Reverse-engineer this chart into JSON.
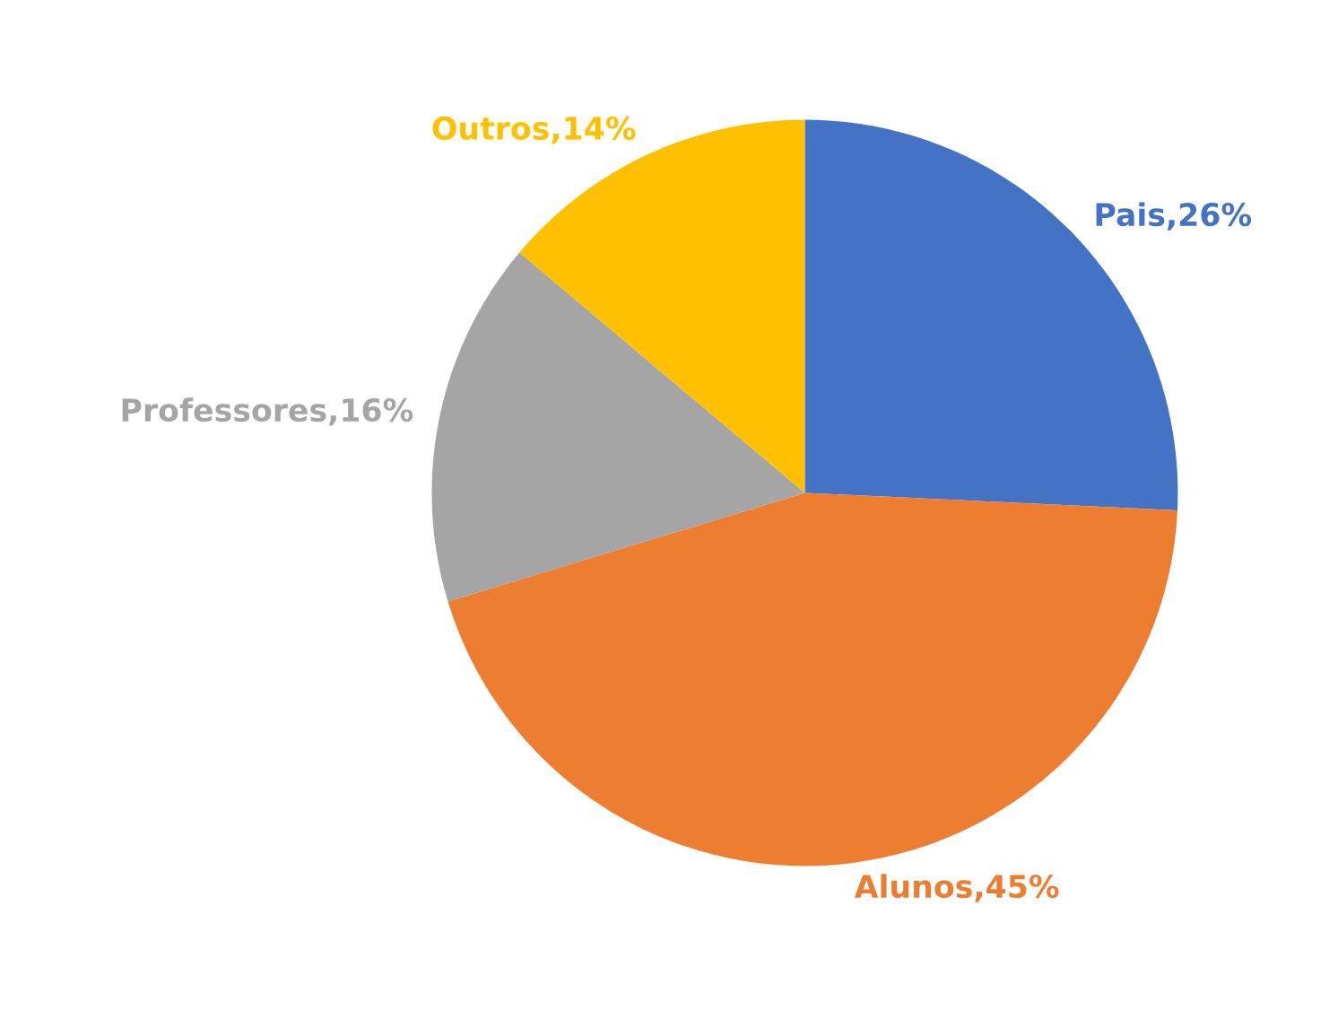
{
  "chart_data": {
    "type": "pie",
    "categories": [
      "Pais",
      "Alunos",
      "Professores",
      "Outros"
    ],
    "values": [
      26,
      45,
      16,
      14
    ],
    "value_labels": [
      "26%",
      "45%",
      "16%",
      "14%"
    ],
    "colors": [
      "#4472c4",
      "#ed7d31",
      "#a5a5a5",
      "#ffc000"
    ]
  }
}
